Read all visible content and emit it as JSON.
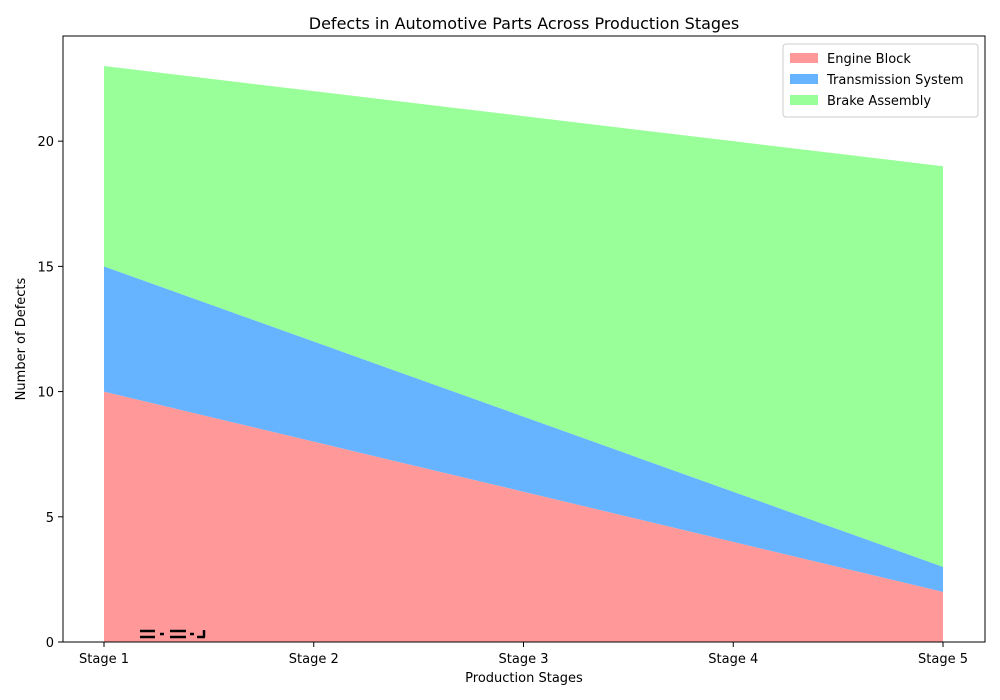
{
  "chart_data": {
    "type": "area",
    "stacked": true,
    "title": "Defects in Automotive Parts Across Production Stages",
    "xlabel": "Production Stages",
    "ylabel": "Number of Defects",
    "categories": [
      "Stage 1",
      "Stage 2",
      "Stage 3",
      "Stage 4",
      "Stage 5"
    ],
    "series": [
      {
        "name": "Engine Block",
        "values": [
          10,
          8,
          6,
          4,
          2
        ],
        "color": "#ff9999"
      },
      {
        "name": "Transmission System",
        "values": [
          5,
          4,
          3,
          2,
          1
        ],
        "color": "#66b3ff"
      },
      {
        "name": "Brake Assembly",
        "values": [
          8,
          10,
          12,
          14,
          16
        ],
        "color": "#99ff99"
      }
    ],
    "ylim": [
      0,
      24.2
    ],
    "yticks": [
      0,
      5,
      10,
      15,
      20
    ],
    "grid": false,
    "legend_position": "top-right"
  }
}
